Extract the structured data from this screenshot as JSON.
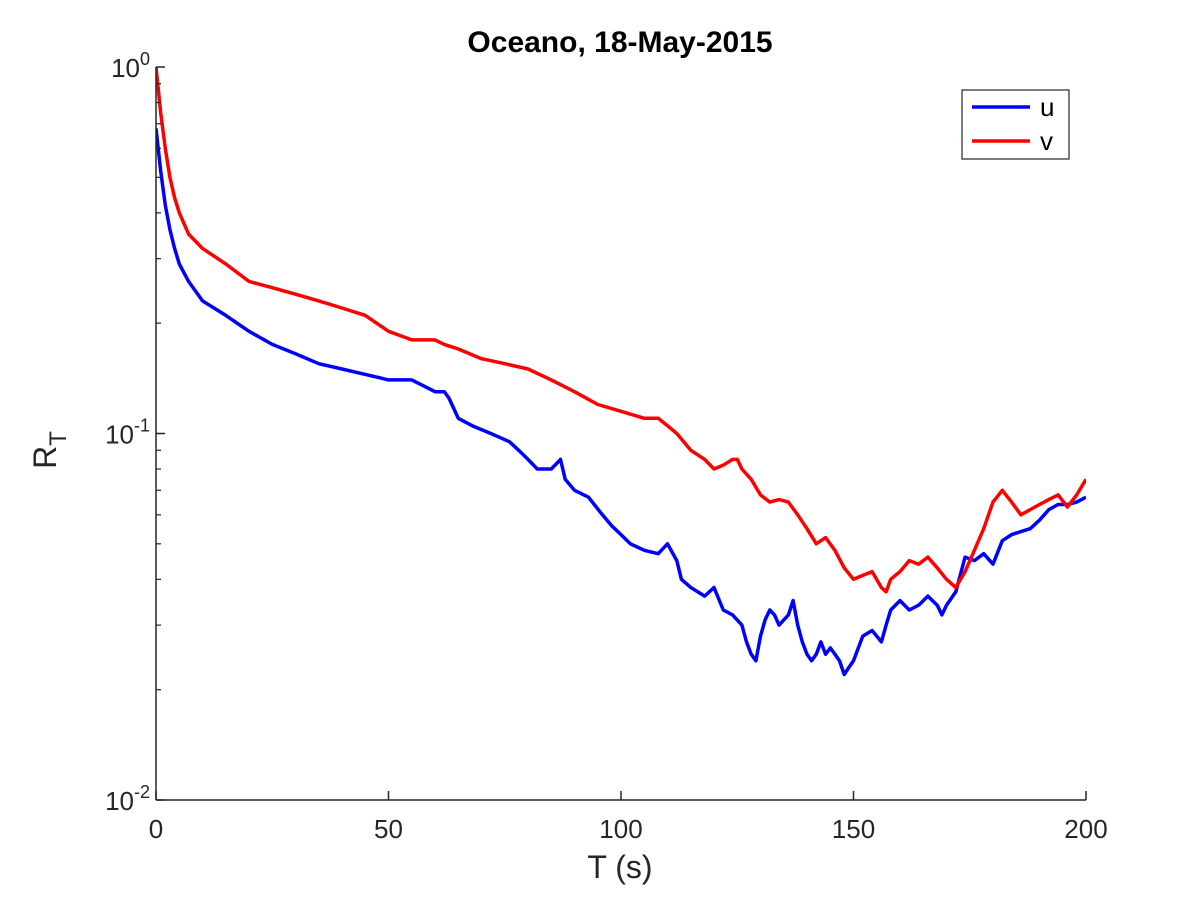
{
  "chart_data": {
    "type": "line",
    "title": "Oceano, 18-May-2015",
    "xlabel": "T (s)",
    "ylabel_base": "R",
    "ylabel_sub": "T",
    "xlim": [
      0,
      200
    ],
    "ylim": [
      0.01,
      1
    ],
    "yscale": "log",
    "grid": false,
    "legend_position": "top-right",
    "x_ticks": [
      {
        "value": 0,
        "label": "0"
      },
      {
        "value": 50,
        "label": "50"
      },
      {
        "value": 100,
        "label": "100"
      },
      {
        "value": 150,
        "label": "150"
      },
      {
        "value": 200,
        "label": "200"
      }
    ],
    "y_ticks": [
      {
        "value": 1,
        "base": "10",
        "exp": "0"
      },
      {
        "value": 0.1,
        "base": "10",
        "exp": "-1"
      },
      {
        "value": 0.01,
        "base": "10",
        "exp": "-2"
      }
    ],
    "series": [
      {
        "name": "u",
        "color": "#0000ff",
        "x": [
          0,
          1,
          2,
          3,
          4,
          5,
          7,
          10,
          15,
          20,
          25,
          30,
          35,
          40,
          45,
          50,
          55,
          60,
          62,
          63,
          65,
          68,
          72,
          76,
          78,
          80,
          82,
          85,
          87,
          88,
          90,
          93,
          96,
          98,
          100,
          102,
          105,
          108,
          110,
          112,
          113,
          115,
          118,
          120,
          122,
          124,
          126,
          127,
          128,
          129,
          130,
          131,
          132,
          133,
          134,
          136,
          137,
          138,
          139,
          140,
          141,
          142,
          143,
          144,
          145,
          146,
          147,
          148,
          149,
          150,
          152,
          154,
          156,
          157,
          158,
          160,
          162,
          164,
          166,
          168,
          169,
          170,
          172,
          174,
          176,
          178,
          180,
          182,
          184,
          186,
          188,
          190,
          192,
          194,
          196,
          198,
          200
        ],
        "y": [
          0.68,
          0.52,
          0.42,
          0.36,
          0.32,
          0.29,
          0.26,
          0.23,
          0.21,
          0.19,
          0.175,
          0.165,
          0.155,
          0.15,
          0.145,
          0.14,
          0.14,
          0.13,
          0.13,
          0.125,
          0.11,
          0.105,
          0.1,
          0.095,
          0.09,
          0.085,
          0.08,
          0.08,
          0.085,
          0.075,
          0.07,
          0.067,
          0.06,
          0.056,
          0.053,
          0.05,
          0.048,
          0.047,
          0.05,
          0.045,
          0.04,
          0.038,
          0.036,
          0.038,
          0.033,
          0.032,
          0.03,
          0.027,
          0.025,
          0.024,
          0.028,
          0.031,
          0.033,
          0.032,
          0.03,
          0.032,
          0.035,
          0.03,
          0.027,
          0.025,
          0.024,
          0.025,
          0.027,
          0.025,
          0.026,
          0.025,
          0.024,
          0.022,
          0.023,
          0.024,
          0.028,
          0.029,
          0.027,
          0.03,
          0.033,
          0.035,
          0.033,
          0.034,
          0.036,
          0.034,
          0.032,
          0.034,
          0.037,
          0.046,
          0.045,
          0.047,
          0.044,
          0.051,
          0.053,
          0.054,
          0.055,
          0.058,
          0.062,
          0.064,
          0.064,
          0.065,
          0.067
        ]
      },
      {
        "name": "v",
        "color": "#ff0000",
        "x": [
          0,
          1,
          2,
          3,
          4,
          5,
          7,
          10,
          15,
          20,
          25,
          30,
          35,
          40,
          45,
          50,
          55,
          60,
          62,
          65,
          70,
          75,
          80,
          85,
          90,
          95,
          100,
          105,
          108,
          110,
          112,
          115,
          118,
          120,
          122,
          124,
          125,
          126,
          128,
          130,
          132,
          134,
          136,
          138,
          140,
          142,
          144,
          146,
          148,
          150,
          152,
          154,
          156,
          157,
          158,
          160,
          162,
          164,
          166,
          168,
          170,
          172,
          174,
          176,
          178,
          180,
          182,
          184,
          186,
          188,
          190,
          192,
          194,
          196,
          198,
          200
        ],
        "y": [
          1.0,
          0.75,
          0.6,
          0.5,
          0.44,
          0.4,
          0.35,
          0.32,
          0.29,
          0.26,
          0.25,
          0.24,
          0.23,
          0.22,
          0.21,
          0.19,
          0.18,
          0.18,
          0.175,
          0.17,
          0.16,
          0.155,
          0.15,
          0.14,
          0.13,
          0.12,
          0.115,
          0.11,
          0.11,
          0.105,
          0.1,
          0.09,
          0.085,
          0.08,
          0.082,
          0.085,
          0.085,
          0.08,
          0.075,
          0.068,
          0.065,
          0.066,
          0.065,
          0.06,
          0.055,
          0.05,
          0.052,
          0.048,
          0.043,
          0.04,
          0.041,
          0.042,
          0.038,
          0.037,
          0.04,
          0.042,
          0.045,
          0.044,
          0.046,
          0.043,
          0.04,
          0.038,
          0.042,
          0.048,
          0.055,
          0.065,
          0.07,
          0.065,
          0.06,
          0.062,
          0.064,
          0.066,
          0.068,
          0.063,
          0.068,
          0.075
        ]
      }
    ]
  }
}
